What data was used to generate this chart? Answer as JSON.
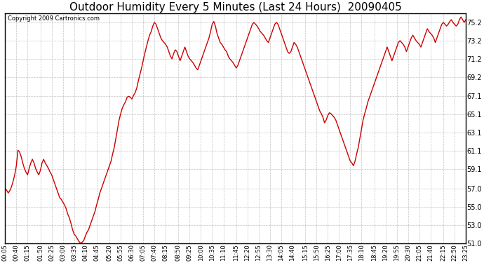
{
  "title": "Outdoor Humidity Every 5 Minutes (Last 24 Hours)  20090405",
  "copyright": "Copyright 2009 Cartronics.com",
  "line_color": "#cc0000",
  "background_color": "#ffffff",
  "grid_color": "#aaaaaa",
  "ylim": [
    51.0,
    76.2
  ],
  "yticks": [
    51.0,
    53.0,
    55.0,
    57.0,
    59.1,
    61.1,
    63.1,
    65.1,
    67.1,
    69.2,
    71.2,
    73.2,
    75.2
  ],
  "title_fontsize": 11,
  "xlabel_fontsize": 6,
  "ylabel_fontsize": 7,
  "copyright_fontsize": 6,
  "line_width": 1.0,
  "humidity_data": [
    57.0,
    56.8,
    56.5,
    56.8,
    57.2,
    57.8,
    58.5,
    59.5,
    61.2,
    61.0,
    60.5,
    59.8,
    59.2,
    58.8,
    58.5,
    59.2,
    59.8,
    60.2,
    59.8,
    59.2,
    58.8,
    58.5,
    59.0,
    59.8,
    60.2,
    59.8,
    59.5,
    59.2,
    58.8,
    58.5,
    58.0,
    57.5,
    57.0,
    56.5,
    56.0,
    55.8,
    55.5,
    55.2,
    54.8,
    54.2,
    53.8,
    53.2,
    52.5,
    52.0,
    51.8,
    51.5,
    51.2,
    51.0,
    51.1,
    51.3,
    51.8,
    52.2,
    52.5,
    53.0,
    53.5,
    54.0,
    54.5,
    55.2,
    55.8,
    56.5,
    57.0,
    57.5,
    58.0,
    58.5,
    59.0,
    59.5,
    60.0,
    60.8,
    61.5,
    62.5,
    63.5,
    64.5,
    65.2,
    65.8,
    66.2,
    66.5,
    67.0,
    67.1,
    67.0,
    66.8,
    67.2,
    67.5,
    68.0,
    68.8,
    69.5,
    70.2,
    71.0,
    71.8,
    72.5,
    73.2,
    73.8,
    74.2,
    74.8,
    75.2,
    75.0,
    74.5,
    74.0,
    73.5,
    73.2,
    73.0,
    72.8,
    72.5,
    72.0,
    71.5,
    71.2,
    71.8,
    72.2,
    72.0,
    71.5,
    71.0,
    71.5,
    72.0,
    72.5,
    72.0,
    71.5,
    71.2,
    71.0,
    70.8,
    70.5,
    70.2,
    70.0,
    70.5,
    71.0,
    71.5,
    72.0,
    72.5,
    73.0,
    73.5,
    74.2,
    75.0,
    75.3,
    74.8,
    74.0,
    73.5,
    73.0,
    72.8,
    72.5,
    72.2,
    72.0,
    71.5,
    71.2,
    71.0,
    70.8,
    70.5,
    70.2,
    70.5,
    71.0,
    71.5,
    72.0,
    72.5,
    73.0,
    73.5,
    74.0,
    74.5,
    75.0,
    75.2,
    75.0,
    74.8,
    74.5,
    74.2,
    74.0,
    73.8,
    73.5,
    73.2,
    73.0,
    73.5,
    74.0,
    74.5,
    75.0,
    75.2,
    75.0,
    74.5,
    74.0,
    73.5,
    73.0,
    72.5,
    72.0,
    71.8,
    72.0,
    72.5,
    73.0,
    72.8,
    72.5,
    72.0,
    71.5,
    71.0,
    70.5,
    70.0,
    69.5,
    69.0,
    68.5,
    68.0,
    67.5,
    67.0,
    66.5,
    66.0,
    65.5,
    65.2,
    64.8,
    64.2,
    64.5,
    65.0,
    65.3,
    65.2,
    65.0,
    64.8,
    64.5,
    64.0,
    63.5,
    63.0,
    62.5,
    62.0,
    61.5,
    61.0,
    60.5,
    60.0,
    59.8,
    59.5,
    60.0,
    60.8,
    61.5,
    62.5,
    63.5,
    64.5,
    65.2,
    65.8,
    66.5,
    67.0,
    67.5,
    68.0,
    68.5,
    69.0,
    69.5,
    70.0,
    70.5,
    71.0,
    71.5,
    72.0,
    72.5,
    72.0,
    71.5,
    71.0,
    71.5,
    72.0,
    72.5,
    73.0,
    73.2,
    73.0,
    72.8,
    72.5,
    72.0,
    72.5,
    73.0,
    73.5,
    73.8,
    73.5,
    73.2,
    73.0,
    72.8,
    72.5,
    73.0,
    73.5,
    74.0,
    74.5,
    74.2,
    74.0,
    73.8,
    73.5,
    73.0,
    73.5,
    74.0,
    74.5,
    75.0,
    75.2,
    75.0,
    74.8,
    75.0,
    75.3,
    75.5,
    75.2,
    75.0,
    74.8,
    75.0,
    75.5,
    75.8,
    75.5,
    75.2,
    75.5
  ],
  "x_labels": [
    "00:05",
    "00:40",
    "01:15",
    "01:50",
    "02:25",
    "03:00",
    "03:35",
    "04:10",
    "04:45",
    "05:20",
    "05:55",
    "06:30",
    "07:05",
    "07:40",
    "08:15",
    "08:50",
    "09:25",
    "10:00",
    "10:35",
    "11:10",
    "11:45",
    "12:20",
    "12:55",
    "13:30",
    "14:05",
    "14:40",
    "15:15",
    "15:50",
    "16:25",
    "17:00",
    "17:35",
    "18:10",
    "18:45",
    "19:20",
    "19:55",
    "20:30",
    "21:05",
    "21:40",
    "22:15",
    "22:50",
    "23:25"
  ]
}
